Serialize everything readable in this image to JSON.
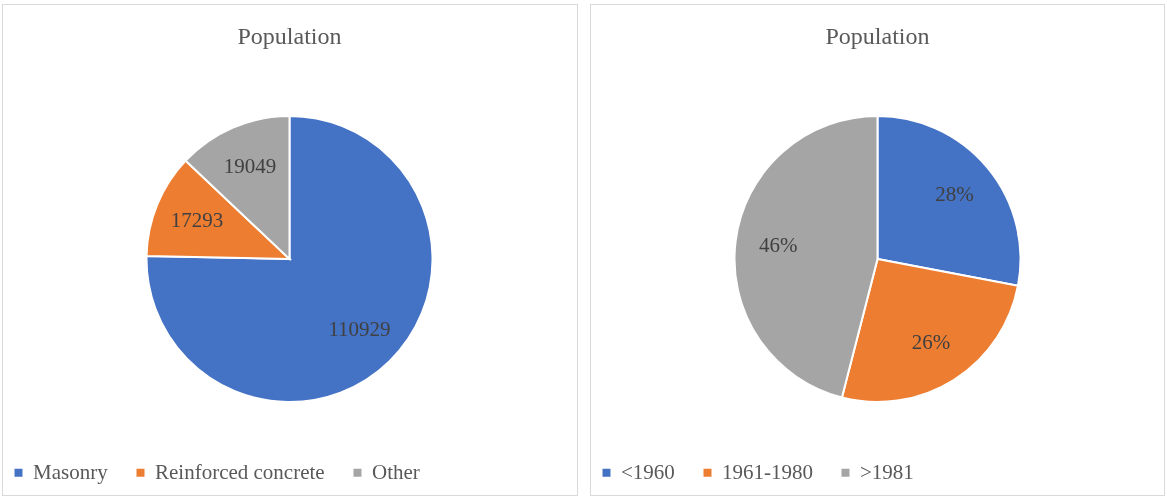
{
  "chart_data": [
    {
      "type": "pie",
      "title": "Population",
      "categories": [
        "Masonry",
        "Reinforced concrete",
        "Other"
      ],
      "values": [
        110929,
        17293,
        19049
      ],
      "colors": [
        "#4472c4",
        "#ed7d31",
        "#a5a5a5"
      ],
      "data_labels": true,
      "legend": "bottom"
    },
    {
      "type": "pie",
      "title": "Population",
      "categories": [
        "<1960",
        "1961-1980",
        ">1981"
      ],
      "values": [
        28,
        26,
        46
      ],
      "colors": [
        "#4472c4",
        "#ed7d31",
        "#a5a5a5"
      ],
      "value_labels": [
        "28%",
        "26%",
        "46%"
      ],
      "legend": "bottom"
    }
  ]
}
